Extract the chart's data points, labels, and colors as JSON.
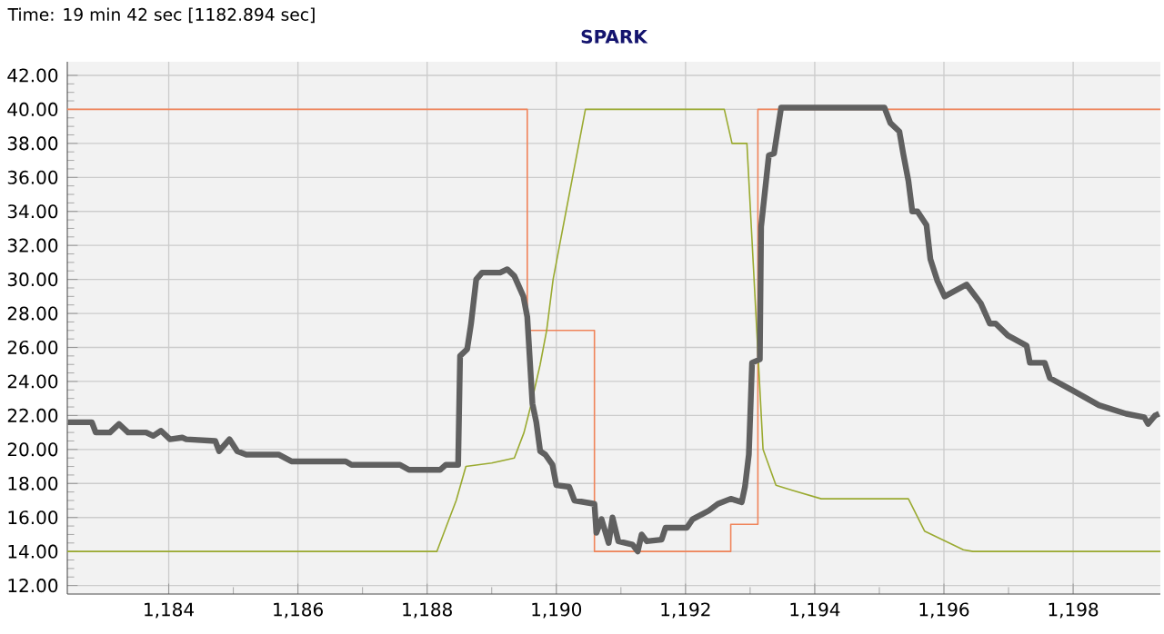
{
  "chart_data": {
    "type": "line",
    "title": "SPARK",
    "annotations": [
      "Time: 19 min 42 sec [1182.894 sec]"
    ],
    "xlim": [
      1182.43,
      1199.35
    ],
    "ylim": [
      11.5,
      42.8
    ],
    "xticks": [
      {
        "value": 1184,
        "label": "1,184"
      },
      {
        "value": 1186,
        "label": "1,186"
      },
      {
        "value": 1188,
        "label": "1,188"
      },
      {
        "value": 1190,
        "label": "1,190"
      },
      {
        "value": 1192,
        "label": "1,192"
      },
      {
        "value": 1194,
        "label": "1,194"
      },
      {
        "value": 1196,
        "label": "1,196"
      },
      {
        "value": 1198,
        "label": "1,198"
      }
    ],
    "yticks": [
      {
        "value": 12,
        "label": "12.00"
      },
      {
        "value": 14,
        "label": "14.00"
      },
      {
        "value": 16,
        "label": "16.00"
      },
      {
        "value": 18,
        "label": "18.00"
      },
      {
        "value": 20,
        "label": "20.00"
      },
      {
        "value": 22,
        "label": "22.00"
      },
      {
        "value": 24,
        "label": "24.00"
      },
      {
        "value": 26,
        "label": "26.00"
      },
      {
        "value": 28,
        "label": "28.00"
      },
      {
        "value": 30,
        "label": "30.00"
      },
      {
        "value": 32,
        "label": "32.00"
      },
      {
        "value": 34,
        "label": "34.00"
      },
      {
        "value": 36,
        "label": "36.00"
      },
      {
        "value": 38,
        "label": "38.00"
      },
      {
        "value": 40,
        "label": "40.00"
      },
      {
        "value": 42,
        "label": "42.00"
      }
    ],
    "grid": true,
    "marker": "none",
    "series": [
      {
        "type": "step",
        "color": "#f0845a",
        "x": [
          1182.43,
          1189.55,
          1190.59,
          1192.7,
          1193.12,
          1199.35
        ],
        "values": [
          40,
          27,
          14,
          15.6,
          40,
          40
        ]
      },
      {
        "type": "line",
        "color": "#9aaa30",
        "x": [
          1182.43,
          1188.15,
          1188.3,
          1188.45,
          1188.6,
          1189.0,
          1189.35,
          1189.5,
          1189.6,
          1189.75,
          1189.85,
          1189.95,
          1190.05,
          1190.15,
          1190.25,
          1190.35,
          1190.45,
          1192.6,
          1192.72,
          1192.95,
          1193.2,
          1193.4,
          1193.65,
          1194.1,
          1195.45,
          1195.7,
          1196.3,
          1196.45,
          1199.35
        ],
        "values": [
          14,
          14,
          15.5,
          17,
          19,
          19.2,
          19.5,
          21,
          22.5,
          25,
          27,
          30,
          32,
          34,
          36,
          38,
          40,
          40,
          38,
          38,
          20,
          17.9,
          17.6,
          17.1,
          17.1,
          15.2,
          14.1,
          14,
          14
        ]
      },
      {
        "color": "#606060",
        "x": [
          1182.44,
          1182.81,
          1182.87,
          1183.09,
          1183.23,
          1183.37,
          1183.65,
          1183.76,
          1183.88,
          1184.02,
          1184.21,
          1184.27,
          1184.72,
          1184.78,
          1184.94,
          1185.06,
          1185.2,
          1185.7,
          1185.9,
          1186.74,
          1186.83,
          1187.58,
          1187.72,
          1188.2,
          1188.29,
          1188.48,
          1188.51,
          1188.62,
          1188.68,
          1188.76,
          1188.85,
          1189.13,
          1189.24,
          1189.35,
          1189.49,
          1189.55,
          1189.61,
          1189.63,
          1189.69,
          1189.75,
          1189.83,
          1189.94,
          1190.0,
          1190.2,
          1190.28,
          1190.59,
          1190.62,
          1190.7,
          1190.81,
          1190.87,
          1190.96,
          1191.18,
          1191.26,
          1191.32,
          1191.4,
          1191.63,
          1191.69,
          1192.02,
          1192.11,
          1192.36,
          1192.5,
          1192.7,
          1192.87,
          1192.92,
          1192.98,
          1193.01,
          1193.03,
          1193.15,
          1193.17,
          1193.29,
          1193.37,
          1193.48,
          1195.08,
          1195.17,
          1195.31,
          1195.37,
          1195.45,
          1195.51,
          1195.59,
          1195.73,
          1195.79,
          1195.9,
          1196.01,
          1196.35,
          1196.57,
          1196.71,
          1196.8,
          1196.99,
          1197.28,
          1197.33,
          1197.56,
          1197.64,
          1197.98,
          1198.4,
          1198.82,
          1199.1,
          1199.16,
          1199.27,
          1199.33
        ],
        "values": [
          21.6,
          21.6,
          21.0,
          21.0,
          21.5,
          21.0,
          21.0,
          20.8,
          21.1,
          20.6,
          20.7,
          20.6,
          20.5,
          19.9,
          20.6,
          19.9,
          19.7,
          19.7,
          19.3,
          19.3,
          19.1,
          19.1,
          18.8,
          18.8,
          19.1,
          19.1,
          25.5,
          25.9,
          27.4,
          30.0,
          30.4,
          30.4,
          30.6,
          30.2,
          29.0,
          27.8,
          24.0,
          22.7,
          21.6,
          19.9,
          19.7,
          19.1,
          17.9,
          17.8,
          17.0,
          16.8,
          15.1,
          15.9,
          14.5,
          16.0,
          14.6,
          14.4,
          14.0,
          15.0,
          14.6,
          14.7,
          15.4,
          15.4,
          15.9,
          16.4,
          16.8,
          17.1,
          16.9,
          17.8,
          19.7,
          22.9,
          25.1,
          25.3,
          33.1,
          37.3,
          37.4,
          40.1,
          40.1,
          39.2,
          38.7,
          37.4,
          35.8,
          34.0,
          34.0,
          33.2,
          31.2,
          29.9,
          29.0,
          29.7,
          28.6,
          27.4,
          27.4,
          26.7,
          26.1,
          25.1,
          25.1,
          24.2,
          23.5,
          22.6,
          22.1,
          21.9,
          21.5,
          22.0,
          22.1
        ]
      }
    ]
  }
}
